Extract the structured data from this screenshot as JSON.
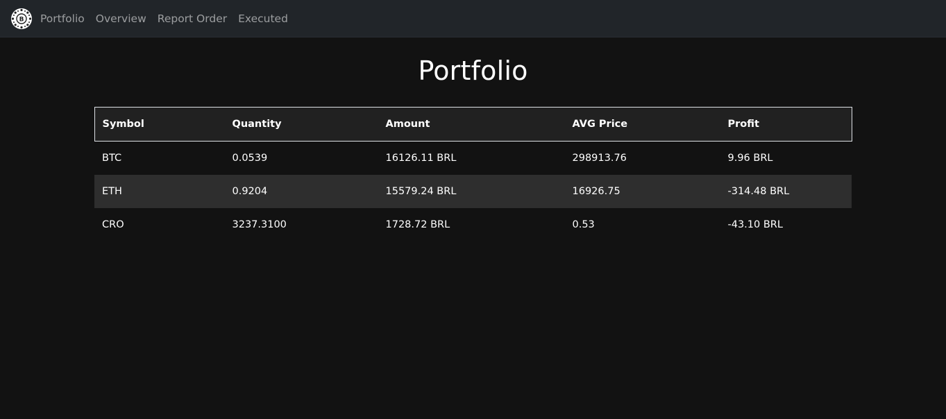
{
  "nav": {
    "logo_icon": "bitcoin-badge-icon",
    "links": [
      "Portfolio",
      "Overview",
      "Report Order",
      "Executed"
    ]
  },
  "page": {
    "title": "Portfolio"
  },
  "table": {
    "headers": [
      "Symbol",
      "Quantity",
      "Amount",
      "AVG Price",
      "Profit"
    ],
    "rows": [
      [
        "BTC",
        "0.0539",
        "16126.11 BRL",
        "298913.76",
        "9.96 BRL"
      ],
      [
        "ETH",
        "0.9204",
        "15579.24 BRL",
        "16926.75",
        "-314.48 BRL"
      ],
      [
        "CRO",
        "3237.3100",
        "1728.72 BRL",
        "0.53",
        "-43.10 BRL"
      ]
    ]
  },
  "colors": {
    "background": "#121212",
    "navbar": "#212529",
    "header_row": "#212121",
    "striped_row": "#2e2e2e",
    "text": "#ffffff"
  }
}
